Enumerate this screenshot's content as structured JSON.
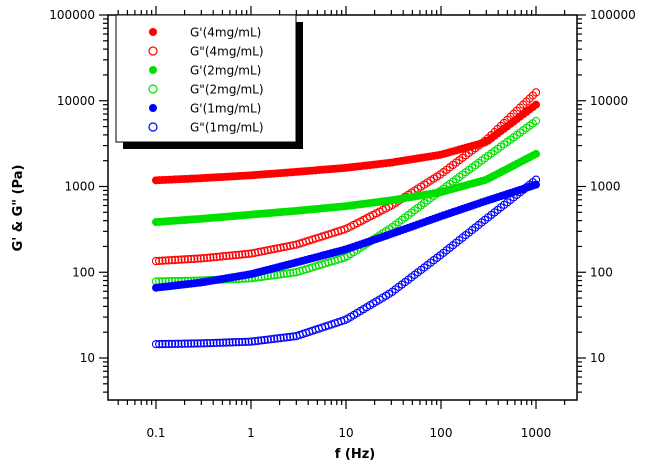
{
  "chart_data": {
    "type": "scatter",
    "title": "",
    "xlabel": "f (Hz)",
    "ylabel": "G' & G\" (Pa)",
    "x_scale": "log",
    "y_scale": "log",
    "xlim": [
      0.033,
      2500
    ],
    "ylim": [
      3,
      100000
    ],
    "x_ticks": [
      0.1,
      1,
      10,
      100,
      1000
    ],
    "x_tick_labels": [
      "0.1",
      "1",
      "10",
      "100",
      "1000"
    ],
    "y_ticks": [
      10,
      100,
      1000,
      10000,
      100000
    ],
    "y_tick_labels": [
      "10",
      "100",
      "1000",
      "10000",
      "100000"
    ],
    "right_y_tick_labels": [
      "10",
      "100",
      "1000",
      "10000",
      "100000"
    ],
    "grid": false,
    "legend_position": "top-left",
    "series": [
      {
        "name": "G'(4mg/mL)",
        "color": "#ff0000",
        "marker": "filled-circle",
        "points": [
          [
            0.1,
            1180
          ],
          [
            0.3,
            1250
          ],
          [
            1,
            1350
          ],
          [
            3,
            1480
          ],
          [
            10,
            1650
          ],
          [
            30,
            1900
          ],
          [
            100,
            2350
          ],
          [
            300,
            3300
          ],
          [
            1000,
            9000
          ]
        ]
      },
      {
        "name": "G\"(4mg/mL)",
        "color": "#ff0000",
        "marker": "open-circle",
        "points": [
          [
            0.1,
            135
          ],
          [
            0.3,
            145
          ],
          [
            1,
            165
          ],
          [
            3,
            210
          ],
          [
            10,
            320
          ],
          [
            30,
            600
          ],
          [
            100,
            1400
          ],
          [
            300,
            3500
          ],
          [
            1000,
            12500
          ]
        ]
      },
      {
        "name": "G'(2mg/mL)",
        "color": "#00e000",
        "marker": "filled-circle",
        "points": [
          [
            0.1,
            385
          ],
          [
            0.3,
            420
          ],
          [
            1,
            470
          ],
          [
            3,
            520
          ],
          [
            10,
            590
          ],
          [
            30,
            690
          ],
          [
            100,
            860
          ],
          [
            300,
            1200
          ],
          [
            1000,
            2400
          ]
        ]
      },
      {
        "name": "G\"(2mg/mL)",
        "color": "#00e000",
        "marker": "open-circle",
        "points": [
          [
            0.1,
            78
          ],
          [
            0.3,
            80
          ],
          [
            1,
            85
          ],
          [
            3,
            100
          ],
          [
            10,
            150
          ],
          [
            30,
            330
          ],
          [
            100,
            900
          ],
          [
            300,
            2200
          ],
          [
            1000,
            5800
          ]
        ]
      },
      {
        "name": "G'(1mg/mL)",
        "color": "#0000ff",
        "marker": "filled-circle",
        "points": [
          [
            0.1,
            66
          ],
          [
            0.3,
            76
          ],
          [
            1,
            95
          ],
          [
            3,
            130
          ],
          [
            10,
            185
          ],
          [
            30,
            280
          ],
          [
            100,
            450
          ],
          [
            300,
            680
          ],
          [
            1000,
            1050
          ]
        ]
      },
      {
        "name": "G\"(1mg/mL)",
        "color": "#0000ff",
        "marker": "open-circle",
        "points": [
          [
            0.1,
            14.5
          ],
          [
            0.3,
            14.8
          ],
          [
            1,
            15.5
          ],
          [
            3,
            18
          ],
          [
            10,
            28
          ],
          [
            30,
            58
          ],
          [
            100,
            160
          ],
          [
            300,
            420
          ],
          [
            1000,
            1200
          ]
        ]
      }
    ]
  }
}
